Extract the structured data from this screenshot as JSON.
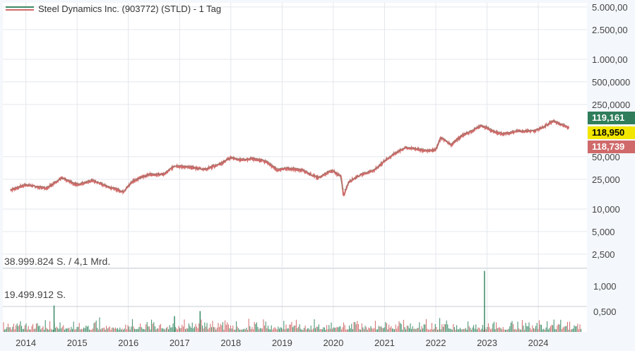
{
  "legend": {
    "label": "Steel Dynamics Inc. (903772) (STLD) - 1 Tag",
    "swatch_colors": [
      "#3a8a66",
      "#d06a6a"
    ]
  },
  "price_tags": {
    "high": {
      "label": "119,161",
      "bg": "#2f7d5b",
      "color": "#ffffff"
    },
    "last": {
      "label": "118,950",
      "bg": "#f2e600",
      "color": "#000000"
    },
    "low": {
      "label": "118,739",
      "bg": "#d06a6a",
      "color": "#ffffff"
    }
  },
  "volume_labels": {
    "max": "38.999.824 S. / 4,1 Mrd.",
    "half": "19.499.912 S."
  },
  "colors": {
    "up": "#3a8a66",
    "down": "#d06a6a",
    "grid": "#e3e7ec",
    "background": "#ffffff"
  },
  "chart_data": {
    "type": "line",
    "title": "Steel Dynamics Inc. (903772) (STLD) - 1 Tag",
    "yscale": "log",
    "price_ticks": [
      "5.000,00",
      "2.500,00",
      "1.000,00",
      "500,0000",
      "250,0000",
      "50,000",
      "25,000",
      "10,000",
      "5,000",
      "2,500"
    ],
    "volume_ticks": [
      "1,000",
      "0,500"
    ],
    "x_ticks": [
      "2014",
      "2015",
      "2016",
      "2017",
      "2018",
      "2019",
      "2020",
      "2021",
      "2022",
      "2023",
      "2024"
    ],
    "series": [
      {
        "values_time": [
          2013.7,
          2014.0,
          2014.4,
          2014.7,
          2015.0,
          2015.3,
          2015.6,
          2015.9,
          2016.1,
          2016.4,
          2016.7,
          2016.9,
          2017.0,
          2017.2,
          2017.5,
          2017.8,
          2018.0,
          2018.2,
          2018.4,
          2018.7,
          2018.9,
          2019.1,
          2019.4,
          2019.7,
          2019.9,
          2020.0,
          2020.15,
          2020.2,
          2020.3,
          2020.5,
          2020.8,
          2021.0,
          2021.2,
          2021.4,
          2021.6,
          2021.8,
          2022.0,
          2022.1,
          2022.3,
          2022.5,
          2022.7,
          2022.9,
          2023.1,
          2023.3,
          2023.6,
          2023.9,
          2024.1,
          2024.3,
          2024.5,
          2024.6
        ],
        "values": [
          18,
          21,
          19,
          26,
          21,
          24,
          20,
          17,
          24,
          29,
          29,
          38,
          37,
          36,
          34,
          40,
          49,
          45,
          47,
          43,
          33,
          35,
          33,
          26,
          31,
          32,
          27,
          15,
          23,
          28,
          33,
          44,
          55,
          66,
          64,
          60,
          62,
          90,
          72,
          95,
          110,
          130,
          110,
          100,
          110,
          110,
          125,
          150,
          130,
          120
        ]
      }
    ],
    "volume_spikes": [
      {
        "x": 2014.55,
        "value": 0.52
      },
      {
        "x": 2016.9,
        "value": 0.31
      },
      {
        "x": 2017.4,
        "value": 0.41
      },
      {
        "x": 2022.95,
        "value": 1.2
      }
    ]
  }
}
